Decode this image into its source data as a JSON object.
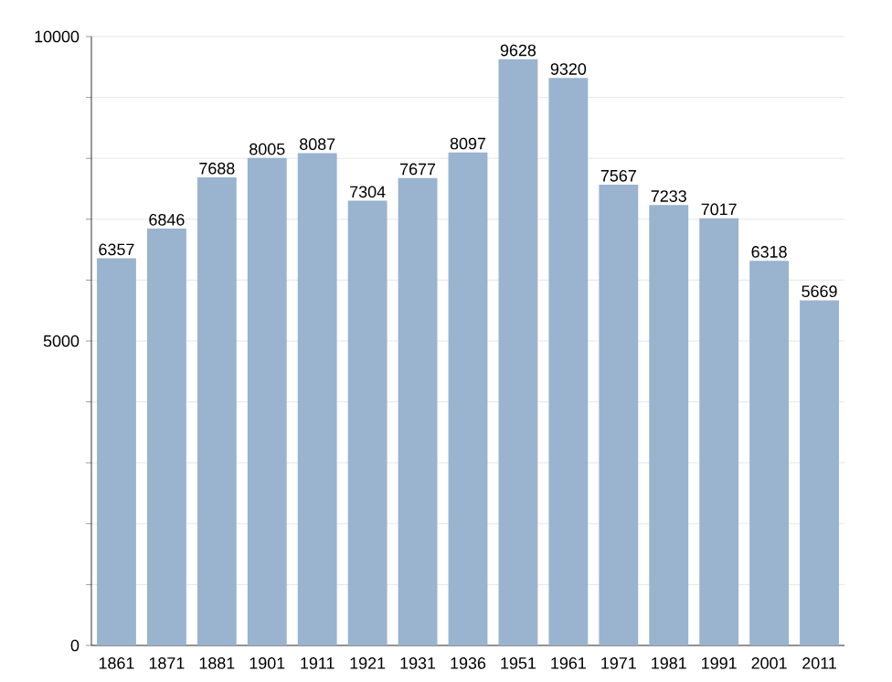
{
  "chart_data": {
    "type": "bar",
    "categories": [
      "1861",
      "1871",
      "1881",
      "1901",
      "1911",
      "1921",
      "1931",
      "1936",
      "1951",
      "1961",
      "1971",
      "1981",
      "1991",
      "2001",
      "2011"
    ],
    "values": [
      6357,
      6846,
      7688,
      8005,
      8087,
      7304,
      7677,
      8097,
      9628,
      9320,
      7567,
      7233,
      7017,
      6318,
      5669
    ],
    "color": "#9ab3cf",
    "ylim": [
      0,
      10000
    ],
    "yticks": [
      0,
      {
        "value": 1000,
        "label": null
      },
      {
        "value": 2000,
        "label": null
      },
      {
        "value": 3000,
        "label": null
      },
      {
        "value": 4000,
        "label": null
      },
      5000,
      {
        "value": 6000,
        "label": null
      },
      {
        "value": 7000,
        "label": null
      },
      {
        "value": 8000,
        "label": null
      },
      {
        "value": 9000,
        "label": null
      },
      10000
    ],
    "grid": "y",
    "data_labels": true
  }
}
